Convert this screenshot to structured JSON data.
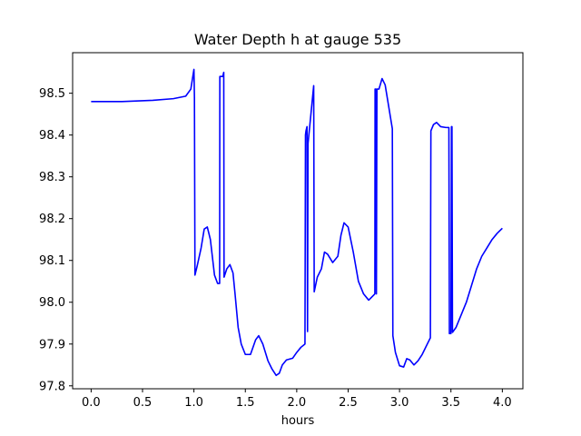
{
  "chart_data": {
    "type": "line",
    "title": "Water Depth h at gauge 535",
    "xlabel": "hours",
    "ylabel": "",
    "xlim": [
      -0.18,
      4.2
    ],
    "ylim": [
      97.793,
      98.597
    ],
    "xticks": [
      0.0,
      0.5,
      1.0,
      1.5,
      2.0,
      2.5,
      3.0,
      3.5,
      4.0
    ],
    "xtick_labels": [
      "0.0",
      "0.5",
      "1.0",
      "1.5",
      "2.0",
      "2.5",
      "3.0",
      "3.5",
      "4.0"
    ],
    "yticks": [
      97.8,
      97.9,
      98.0,
      98.1,
      98.2,
      98.3,
      98.4,
      98.5
    ],
    "ytick_labels": [
      "97.8",
      "97.9",
      "98.0",
      "98.1",
      "98.2",
      "98.3",
      "98.4",
      "98.5"
    ],
    "grid": false,
    "series": [
      {
        "color": "#0000ff",
        "points": [
          [
            0.0,
            98.48
          ],
          [
            0.3,
            98.48
          ],
          [
            0.6,
            98.483
          ],
          [
            0.8,
            98.487
          ],
          [
            0.92,
            98.493
          ],
          [
            0.97,
            98.51
          ],
          [
            1.0,
            98.557
          ],
          [
            1.005,
            98.49
          ],
          [
            1.01,
            98.065
          ],
          [
            1.03,
            98.085
          ],
          [
            1.07,
            98.13
          ],
          [
            1.1,
            98.175
          ],
          [
            1.13,
            98.18
          ],
          [
            1.16,
            98.15
          ],
          [
            1.2,
            98.065
          ],
          [
            1.23,
            98.045
          ],
          [
            1.25,
            98.045
          ],
          [
            1.252,
            98.54
          ],
          [
            1.28,
            98.54
          ],
          [
            1.29,
            98.55
          ],
          [
            1.293,
            98.06
          ],
          [
            1.32,
            98.08
          ],
          [
            1.35,
            98.09
          ],
          [
            1.38,
            98.07
          ],
          [
            1.4,
            98.02
          ],
          [
            1.43,
            97.94
          ],
          [
            1.46,
            97.9
          ],
          [
            1.5,
            97.875
          ],
          [
            1.55,
            97.875
          ],
          [
            1.6,
            97.91
          ],
          [
            1.63,
            97.92
          ],
          [
            1.67,
            97.9
          ],
          [
            1.72,
            97.86
          ],
          [
            1.76,
            97.84
          ],
          [
            1.8,
            97.825
          ],
          [
            1.83,
            97.83
          ],
          [
            1.86,
            97.85
          ],
          [
            1.9,
            97.862
          ],
          [
            1.96,
            97.866
          ],
          [
            2.0,
            97.88
          ],
          [
            2.04,
            97.892
          ],
          [
            2.08,
            97.9
          ],
          [
            2.085,
            98.4
          ],
          [
            2.09,
            98.41
          ],
          [
            2.1,
            98.42
          ],
          [
            2.105,
            97.93
          ],
          [
            2.11,
            98.38
          ],
          [
            2.15,
            98.48
          ],
          [
            2.165,
            98.518
          ],
          [
            2.17,
            98.025
          ],
          [
            2.2,
            98.06
          ],
          [
            2.24,
            98.08
          ],
          [
            2.27,
            98.12
          ],
          [
            2.3,
            98.115
          ],
          [
            2.35,
            98.095
          ],
          [
            2.4,
            98.11
          ],
          [
            2.43,
            98.16
          ],
          [
            2.46,
            98.19
          ],
          [
            2.5,
            98.18
          ],
          [
            2.55,
            98.12
          ],
          [
            2.6,
            98.05
          ],
          [
            2.65,
            98.02
          ],
          [
            2.7,
            98.005
          ],
          [
            2.72,
            98.01
          ],
          [
            2.76,
            98.02
          ],
          [
            2.762,
            98.51
          ],
          [
            2.77,
            98.51
          ],
          [
            2.775,
            98.02
          ],
          [
            2.78,
            98.51
          ],
          [
            2.8,
            98.51
          ],
          [
            2.83,
            98.535
          ],
          [
            2.86,
            98.52
          ],
          [
            2.9,
            98.46
          ],
          [
            2.93,
            98.415
          ],
          [
            2.935,
            97.92
          ],
          [
            2.96,
            97.88
          ],
          [
            3.0,
            97.848
          ],
          [
            3.04,
            97.845
          ],
          [
            3.07,
            97.865
          ],
          [
            3.1,
            97.862
          ],
          [
            3.14,
            97.85
          ],
          [
            3.18,
            97.86
          ],
          [
            3.22,
            97.875
          ],
          [
            3.27,
            97.9
          ],
          [
            3.3,
            97.915
          ],
          [
            3.305,
            98.41
          ],
          [
            3.33,
            98.425
          ],
          [
            3.36,
            98.43
          ],
          [
            3.4,
            98.42
          ],
          [
            3.45,
            98.418
          ],
          [
            3.48,
            98.418
          ],
          [
            3.485,
            97.925
          ],
          [
            3.5,
            97.925
          ],
          [
            3.505,
            98.42
          ],
          [
            3.51,
            98.42
          ],
          [
            3.515,
            97.928
          ],
          [
            3.55,
            97.94
          ],
          [
            3.6,
            97.97
          ],
          [
            3.65,
            98.0
          ],
          [
            3.7,
            98.04
          ],
          [
            3.75,
            98.08
          ],
          [
            3.8,
            98.11
          ],
          [
            3.85,
            98.13
          ],
          [
            3.9,
            98.15
          ],
          [
            3.95,
            98.165
          ],
          [
            4.0,
            98.177
          ]
        ]
      }
    ]
  }
}
